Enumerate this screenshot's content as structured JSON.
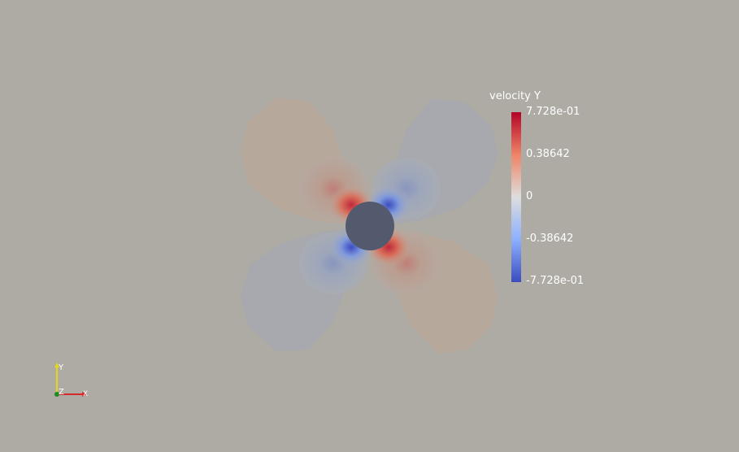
{
  "viewport": {
    "background": "#aeaaa4"
  },
  "legend": {
    "title": "velocity Y",
    "ticks": [
      "7.728e-01",
      "0.38642",
      "0",
      "-0.38642",
      "-7.728e-01"
    ],
    "range": [
      -0.7728,
      0.7728
    ],
    "colormap": "cool-to-warm",
    "colors": {
      "min": "#3b4cc0",
      "mid": "#dddddd",
      "max": "#b40426"
    }
  },
  "axes": {
    "x_label": "X",
    "y_label": "Y",
    "z_label": "Z",
    "x_color": "#d62a2a",
    "y_color": "#e7d51a",
    "z_color": "#1f8a1f"
  },
  "cylinder": {
    "color": "#545a6e"
  }
}
